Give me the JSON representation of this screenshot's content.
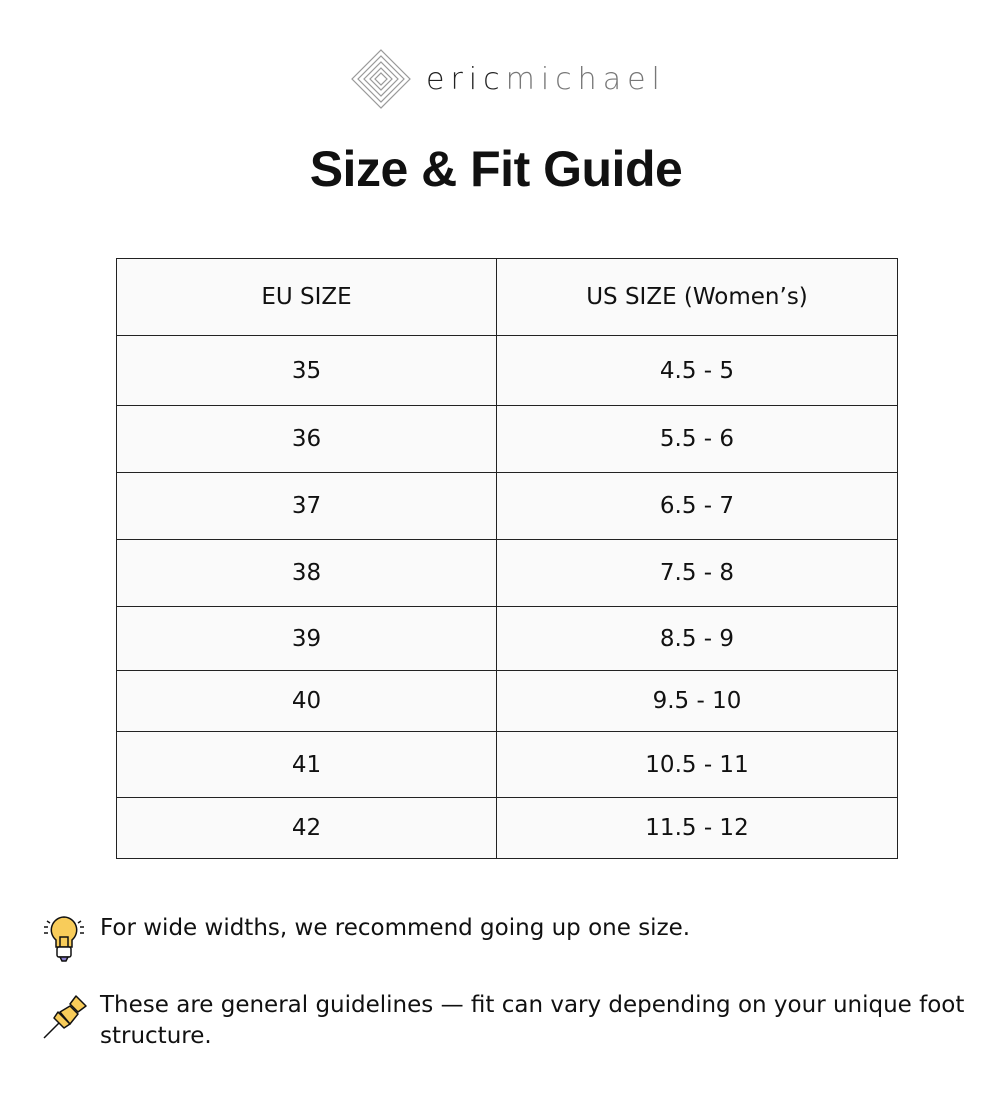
{
  "brand": {
    "name_bold": "eric",
    "name_light": "michael"
  },
  "title": "Size & Fit Guide",
  "table": {
    "headers": [
      "EU SIZE",
      "US SIZE (Women’s)"
    ],
    "rows": [
      [
        "35",
        "4.5 - 5"
      ],
      [
        "36",
        "5.5 - 6"
      ],
      [
        "37",
        "6.5 - 7"
      ],
      [
        "38",
        "7.5 - 8"
      ],
      [
        "39",
        "8.5 - 9"
      ],
      [
        "40",
        "9.5 - 10"
      ],
      [
        "41",
        "10.5 - 11"
      ],
      [
        "42",
        "11.5 - 12"
      ]
    ]
  },
  "notes": [
    {
      "icon": "lightbulb-icon",
      "text": "For wide widths, we recommend going up one size."
    },
    {
      "icon": "pushpin-icon",
      "text": "These are general guidelines — fit can vary depending on your unique foot structure."
    }
  ],
  "colors": {
    "icon_yellow": "#f8cc5a",
    "table_bg": "#fafafa"
  }
}
